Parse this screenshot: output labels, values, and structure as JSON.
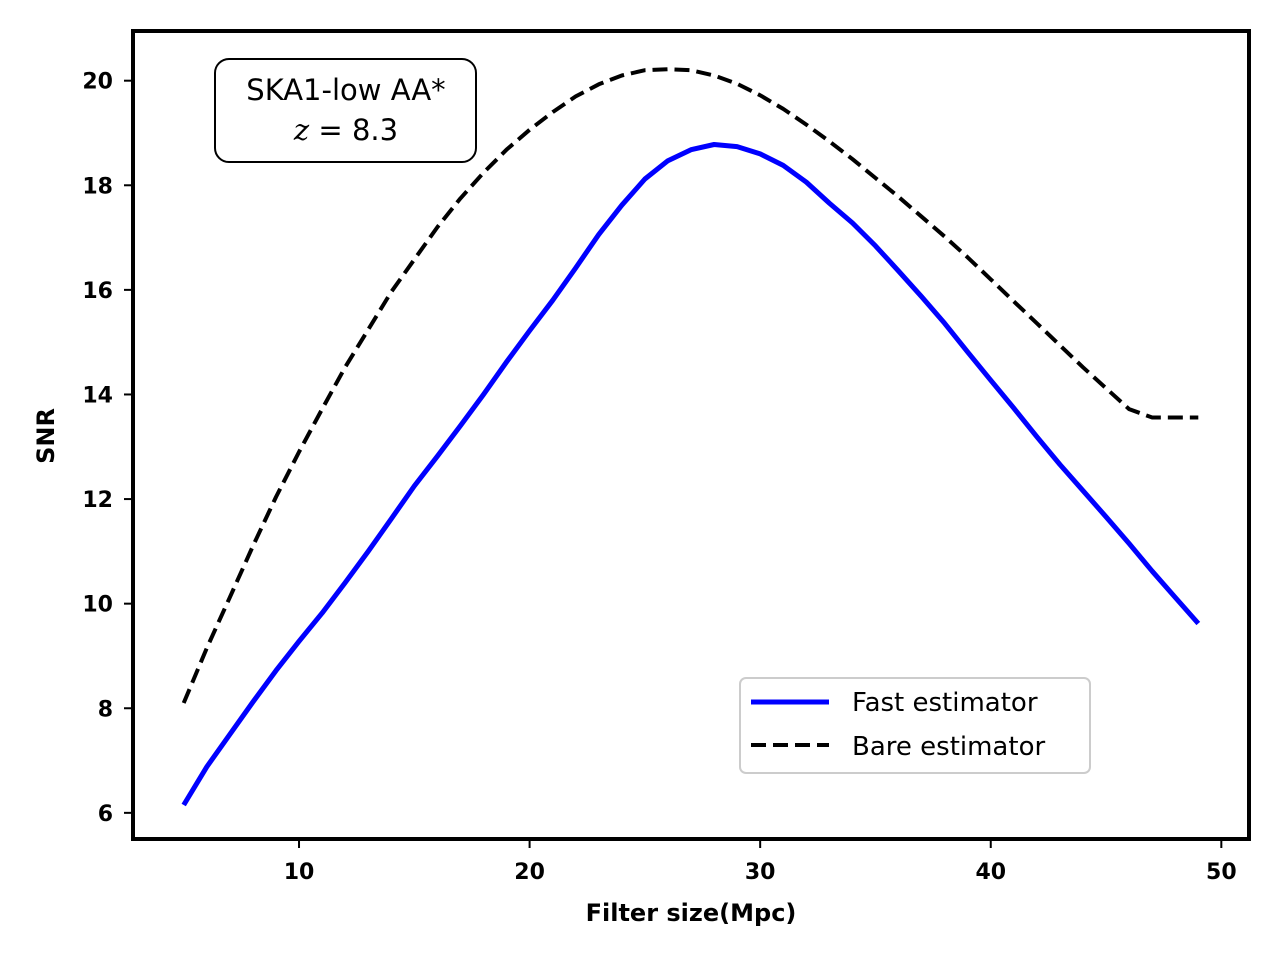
{
  "chart_data": {
    "type": "line",
    "title": "",
    "xlabel": "Filter size(Mpc)",
    "ylabel": "SNR",
    "xlim": [
      2.8,
      51.2
    ],
    "ylim": [
      5.5,
      20.95
    ],
    "xticks": [
      10,
      20,
      30,
      40,
      50
    ],
    "yticks": [
      6,
      8,
      10,
      12,
      14,
      16,
      18,
      20
    ],
    "grid": false,
    "legend_position": "lower-right",
    "annotation": {
      "line1": "SKA1-low AA*",
      "line2_var": "z",
      "line2_rest": " = 8.3"
    },
    "series": [
      {
        "name": "Fast estimator",
        "color": "#0000ff",
        "style": "solid",
        "x": [
          5,
          6,
          7,
          8,
          9,
          10,
          11,
          12,
          13,
          14,
          15,
          16,
          17,
          18,
          19,
          20,
          21,
          22,
          23,
          24,
          25,
          26,
          27,
          28,
          29,
          30,
          31,
          32,
          33,
          34,
          35,
          36,
          37,
          38,
          39,
          40,
          41,
          42,
          43,
          44,
          45,
          46,
          47,
          48,
          49
        ],
        "y": [
          6.15,
          6.88,
          7.5,
          8.12,
          8.72,
          9.28,
          9.82,
          10.4,
          11.0,
          11.62,
          12.25,
          12.82,
          13.4,
          14.0,
          14.62,
          15.22,
          15.8,
          16.42,
          17.06,
          17.62,
          18.12,
          18.47,
          18.68,
          18.78,
          18.74,
          18.6,
          18.38,
          18.06,
          17.66,
          17.28,
          16.84,
          16.36,
          15.87,
          15.36,
          14.81,
          14.27,
          13.74,
          13.19,
          12.66,
          12.16,
          11.66,
          11.15,
          10.62,
          10.12,
          9.62
        ]
      },
      {
        "name": "Bare estimator",
        "color": "#000000",
        "style": "dashed",
        "x": [
          5,
          6,
          7,
          8,
          9,
          10,
          11,
          12,
          13,
          14,
          15,
          16,
          17,
          18,
          19,
          20,
          21,
          22,
          23,
          24,
          25,
          26,
          27,
          28,
          29,
          30,
          31,
          32,
          33,
          34,
          35,
          36,
          37,
          38,
          39,
          40,
          41,
          42,
          43,
          44,
          45,
          46,
          47,
          48,
          49
        ],
        "y": [
          8.1,
          9.15,
          10.12,
          11.1,
          12.04,
          12.9,
          13.72,
          14.52,
          15.24,
          15.96,
          16.58,
          17.2,
          17.75,
          18.24,
          18.68,
          19.06,
          19.4,
          19.7,
          19.93,
          20.1,
          20.2,
          20.22,
          20.2,
          20.1,
          19.94,
          19.72,
          19.46,
          19.16,
          18.84,
          18.5,
          18.14,
          17.78,
          17.4,
          17.02,
          16.62,
          16.2,
          15.78,
          15.36,
          14.94,
          14.52,
          14.12,
          13.72,
          13.56,
          13.56,
          13.56
        ]
      }
    ]
  }
}
